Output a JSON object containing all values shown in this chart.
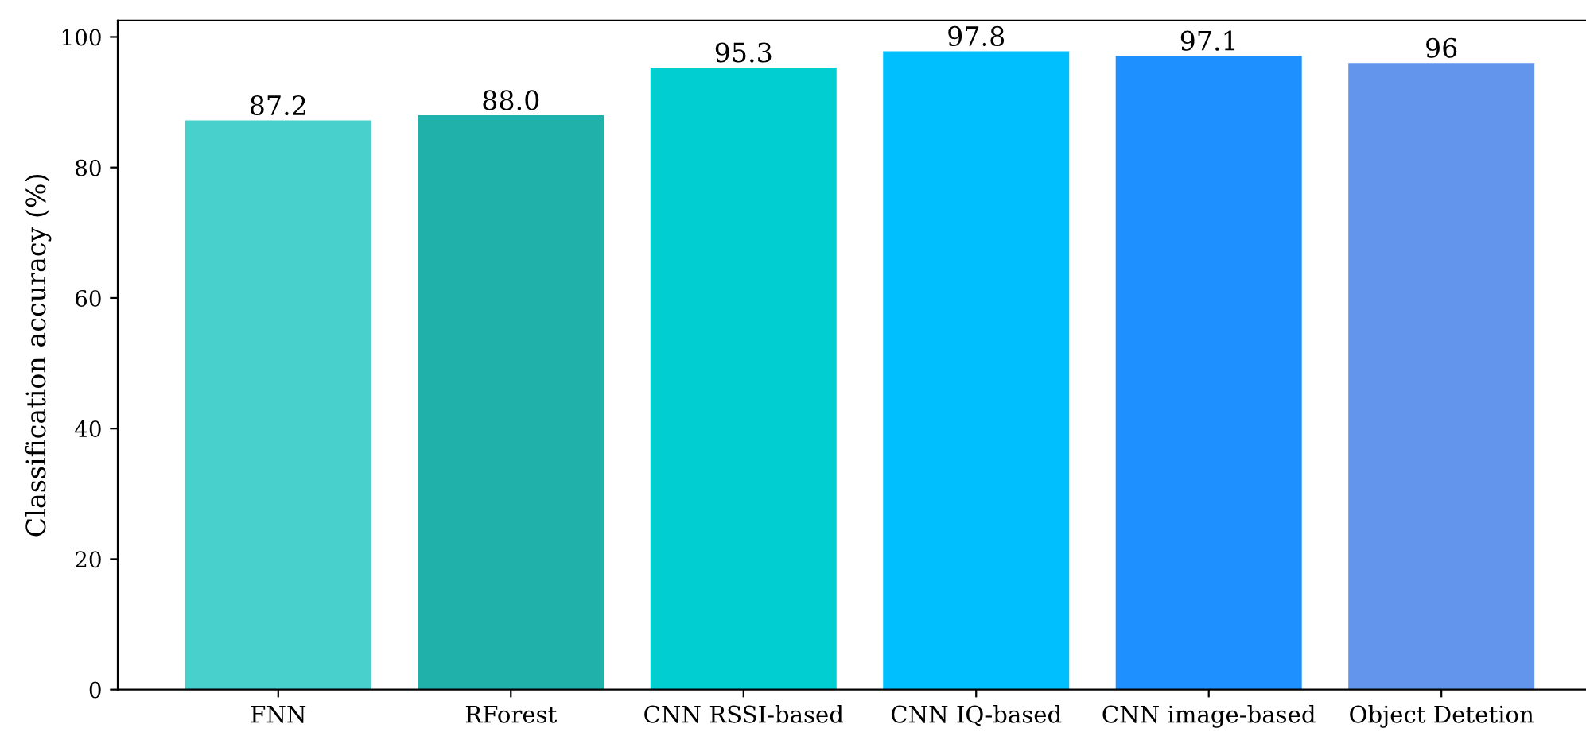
{
  "chart_data": {
    "type": "bar",
    "categories": [
      "FNN",
      "RForest",
      "CNN RSSI-based",
      "CNN IQ-based",
      "CNN image-based",
      "Object Detetion"
    ],
    "values": [
      87.2,
      88.0,
      95.3,
      97.8,
      97.1,
      96
    ],
    "colors": [
      "#48d1cc",
      "#20b2aa",
      "#00ced1",
      "#00bfff",
      "#1e90ff",
      "#6495ed"
    ],
    "value_labels": [
      "87.2",
      "88.0",
      "95.3",
      "97.8",
      "97.1",
      "96"
    ],
    "ylabel": "Classification accuracy (%)",
    "ylim": [
      0,
      102.5
    ],
    "yticks": [
      0,
      20,
      40,
      60,
      80,
      100
    ],
    "grid": false,
    "legend": false
  }
}
